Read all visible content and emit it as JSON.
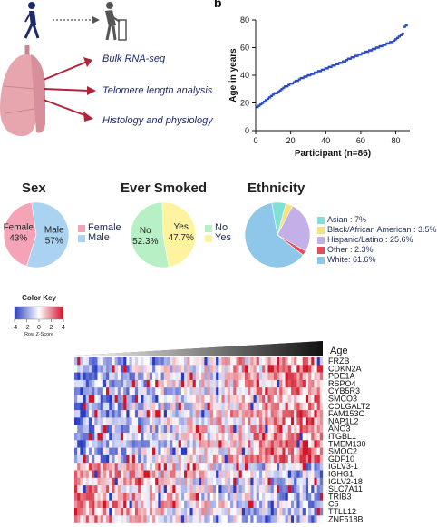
{
  "panel_b": {
    "label": "b"
  },
  "schematic": {
    "arrows": [
      "Bulk RNA-seq",
      "Telomere length analysis",
      "Histology and physiology"
    ]
  },
  "colors": {
    "navy": "#1f2a6b",
    "arrow_red": "#b0243a",
    "lung": "#e7a5ad",
    "scatter": "#2a48c8",
    "pie_pink": "#f5a4b8",
    "pie_lightblue": "#a9d3f0",
    "pie_green": "#b7f0c4",
    "pie_yellow": "#fff3a0",
    "eth_asian": "#7fe0d8",
    "eth_black": "#f6e27a",
    "eth_hispanic": "#c4b0e8",
    "eth_other": "#e74c5c",
    "eth_white": "#8fc7ea"
  },
  "pies": {
    "sex": {
      "title": "Sex",
      "legend": [
        "Female",
        "Male"
      ],
      "slice_labels": [
        "Female\n43%",
        "Male\n57%"
      ],
      "values": [
        43,
        57
      ]
    },
    "smoked": {
      "title": "Ever Smoked",
      "legend": [
        "No",
        "Yes"
      ],
      "slice_labels": [
        "No\n52.3%",
        "Yes\n47.7%"
      ],
      "values": [
        52.3,
        47.7
      ]
    },
    "ethnicity": {
      "title": "Ethnicity",
      "legend": [
        "Asian : 7%",
        "Black/African American : 3.5%",
        "Hispanic/Latino : 25.6%",
        "Other : 2.3%",
        "White: 61.6%"
      ],
      "values": [
        7,
        3.5,
        25.6,
        2.3,
        61.6
      ]
    }
  },
  "color_key": {
    "title": "Color Key",
    "ticks": [
      "-4",
      "-2",
      "0",
      "2",
      "4"
    ],
    "label": "Row Z-Score"
  },
  "heatmap": {
    "age_label": "Age",
    "genes": [
      "FRZB",
      "CDKN2A",
      "PDE1A",
      "RSPO4",
      "CYB5R3",
      "SMCO3",
      "COLGALT2",
      "FAM153C",
      "NAP1L2",
      "ANO3",
      "ITGBL1",
      "TMEM130",
      "SMOC2",
      "GDF10",
      "IGLV3-1",
      "IGHG1",
      "IGLV2-18",
      "SLC7A11",
      "TRIB3",
      "C5",
      "TTLL12",
      "ZNF518B"
    ]
  },
  "chart_data": {
    "type": "scatter",
    "title": "",
    "xlabel": "Participant (n=86)",
    "ylabel": "Age in years",
    "xlim": [
      0,
      88
    ],
    "ylim": [
      0,
      80
    ],
    "xticks": [
      "0",
      "20",
      "40",
      "60",
      "80"
    ],
    "yticks": [
      "0",
      "20",
      "40",
      "60",
      "80"
    ],
    "x": [
      1,
      2,
      3,
      4,
      5,
      6,
      7,
      8,
      9,
      10,
      11,
      12,
      13,
      14,
      15,
      16,
      17,
      18,
      19,
      20,
      21,
      22,
      23,
      24,
      25,
      26,
      27,
      28,
      29,
      30,
      31,
      32,
      33,
      34,
      35,
      36,
      37,
      38,
      39,
      40,
      41,
      42,
      43,
      44,
      45,
      46,
      47,
      48,
      49,
      50,
      51,
      52,
      53,
      54,
      55,
      56,
      57,
      58,
      59,
      60,
      61,
      62,
      63,
      64,
      65,
      66,
      67,
      68,
      69,
      70,
      71,
      72,
      73,
      74,
      75,
      76,
      77,
      78,
      79,
      80,
      81,
      82,
      83,
      84,
      85,
      86
    ],
    "y": [
      17,
      18,
      19,
      20,
      21,
      22,
      23,
      24,
      25,
      26,
      27,
      27,
      28,
      29,
      30,
      31,
      32,
      32,
      33,
      34,
      34,
      35,
      36,
      36,
      37,
      38,
      38,
      39,
      39,
      40,
      40,
      41,
      41,
      42,
      42,
      43,
      43,
      44,
      44,
      45,
      45,
      46,
      46,
      47,
      47,
      48,
      48,
      49,
      49,
      50,
      50,
      51,
      52,
      52,
      53,
      53,
      54,
      54,
      55,
      55,
      56,
      56,
      57,
      57,
      58,
      58,
      59,
      59,
      60,
      60,
      61,
      61,
      62,
      62,
      63,
      63,
      64,
      64,
      65,
      66,
      67,
      68,
      69,
      70,
      75,
      76
    ]
  }
}
